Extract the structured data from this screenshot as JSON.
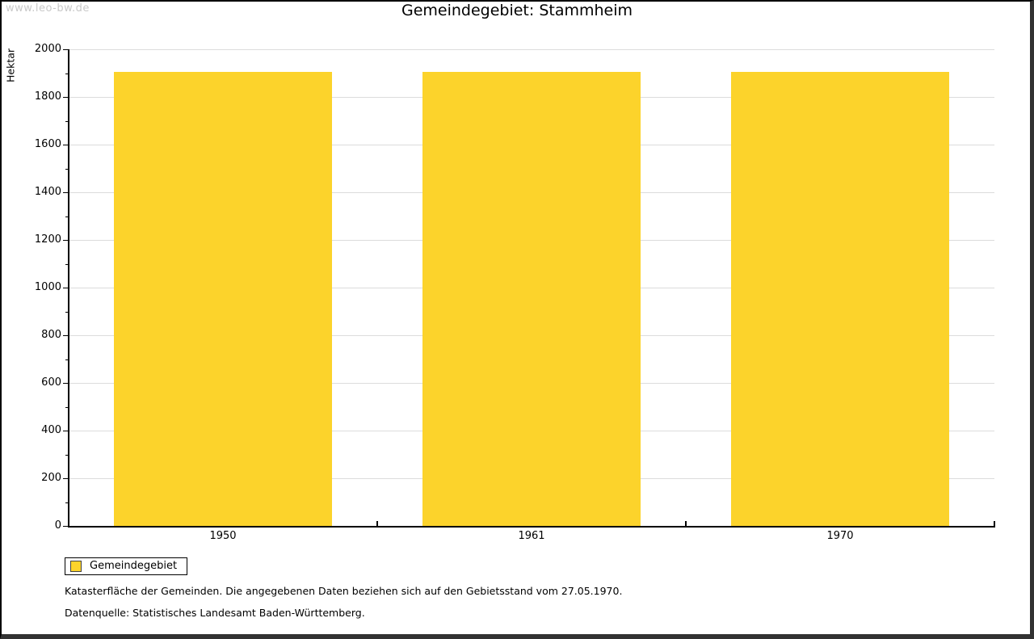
{
  "watermark": "www.leo-bw.de",
  "chart_data": {
    "type": "bar",
    "title": "Gemeindegebiet: Stammheim",
    "xlabel": "",
    "ylabel": "Hektar",
    "categories": [
      "1950",
      "1961",
      "1970"
    ],
    "series": [
      {
        "name": "Gemeindegebiet",
        "values": [
          1905,
          1905,
          1905
        ],
        "color": "#FCD32B"
      }
    ],
    "ylim": [
      0,
      2000
    ],
    "y_major_step": 200,
    "y_minor_step": 100,
    "y_tick_labels": [
      "0",
      "200",
      "400",
      "600",
      "800",
      "1000",
      "1200",
      "1400",
      "1600",
      "1800",
      "2000"
    ],
    "grid": true,
    "gridline_color": "#dcdcdc",
    "legend_position": "bottom-left"
  },
  "legend": {
    "label": "Gemeindegebiet",
    "swatch_color": "#FCD32B"
  },
  "footnotes": [
    "Katasterfläche der Gemeinden. Die angegebenen Daten beziehen sich auf den Gebietsstand vom 27.05.1970.",
    "Datenquelle: Statistisches Landesamt Baden-Württemberg."
  ],
  "colors": {
    "bar": "#FCD32B",
    "gridline": "#dcdcdc",
    "axis": "#000000",
    "watermark": "#c9c9c9",
    "frame_shadow": "#323232",
    "background": "#ffffff"
  }
}
